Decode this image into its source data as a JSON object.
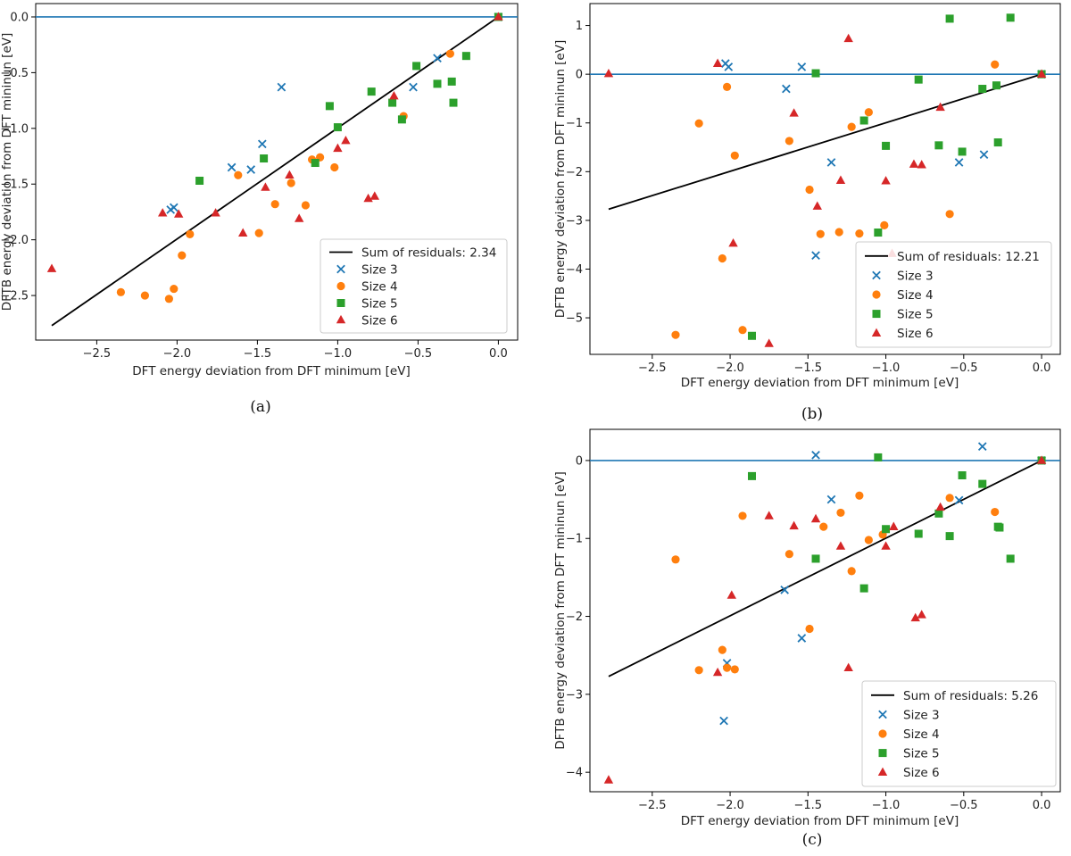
{
  "chart_data": [
    {
      "panel": "a",
      "caption": "(a)",
      "type": "scatter",
      "xlabel": "DFT energy deviation from DFT minimum [eV]",
      "ylabel": "DFTB energy deviation from DFT mininun [eV]",
      "xlim": [
        -2.88,
        0.12
      ],
      "ylim": [
        -2.9,
        0.12
      ],
      "xticks": [
        -2.5,
        -2.0,
        -1.5,
        -1.0,
        -0.5,
        0.0
      ],
      "xtick_labels": [
        "−2.5",
        "−2.0",
        "−1.5",
        "−1.0",
        "−0.5",
        "0.0"
      ],
      "yticks": [
        0.0,
        -0.5,
        -1.0,
        -1.5,
        -2.0,
        -2.5
      ],
      "ytick_labels": [
        "0.0",
        "−0.5",
        "−1.0",
        "−1.5",
        "−2.0",
        "−2.5"
      ],
      "hline": 0.0,
      "fit_line": {
        "label": "Sum of residuals: 2.34",
        "x": [
          -2.78,
          0.0
        ],
        "y": [
          -2.77,
          0.0
        ]
      },
      "legend_position": "lower-right",
      "series": [
        {
          "name": "Size 3",
          "marker": "x",
          "color": "#1f77b4",
          "points": [
            [
              -2.04,
              -1.73
            ],
            [
              -2.02,
              -1.71
            ],
            [
              -1.66,
              -1.35
            ],
            [
              -1.54,
              -1.37
            ],
            [
              -1.47,
              -1.14
            ],
            [
              -1.35,
              -0.63
            ],
            [
              -0.53,
              -0.63
            ],
            [
              -0.38,
              -0.37
            ],
            [
              0.0,
              0.0
            ]
          ]
        },
        {
          "name": "Size 4",
          "marker": "circle",
          "color": "#ff7f0e",
          "points": [
            [
              -2.35,
              -2.47
            ],
            [
              -2.2,
              -2.5
            ],
            [
              -2.05,
              -2.53
            ],
            [
              -2.02,
              -2.44
            ],
            [
              -1.97,
              -2.14
            ],
            [
              -1.92,
              -1.95
            ],
            [
              -1.62,
              -1.42
            ],
            [
              -1.49,
              -1.94
            ],
            [
              -1.39,
              -1.68
            ],
            [
              -1.29,
              -1.49
            ],
            [
              -1.2,
              -1.69
            ],
            [
              -1.16,
              -1.28
            ],
            [
              -1.11,
              -1.26
            ],
            [
              -1.02,
              -1.35
            ],
            [
              -0.59,
              -0.89
            ],
            [
              -0.3,
              -0.33
            ]
          ]
        },
        {
          "name": "Size 5",
          "marker": "square",
          "color": "#2ca02c",
          "points": [
            [
              -1.86,
              -1.47
            ],
            [
              -1.46,
              -1.27
            ],
            [
              -1.14,
              -1.31
            ],
            [
              -1.05,
              -0.8
            ],
            [
              -1.0,
              -0.99
            ],
            [
              -0.79,
              -0.67
            ],
            [
              -0.66,
              -0.77
            ],
            [
              -0.6,
              -0.92
            ],
            [
              -0.51,
              -0.44
            ],
            [
              -0.38,
              -0.6
            ],
            [
              -0.29,
              -0.58
            ],
            [
              -0.28,
              -0.77
            ],
            [
              -0.2,
              -0.35
            ],
            [
              0.0,
              0.0
            ]
          ]
        },
        {
          "name": "Size 6",
          "marker": "triangle",
          "color": "#d62728",
          "points": [
            [
              -2.78,
              -2.26
            ],
            [
              -2.09,
              -1.76
            ],
            [
              -1.99,
              -1.77
            ],
            [
              -1.76,
              -1.76
            ],
            [
              -1.59,
              -1.94
            ],
            [
              -1.45,
              -1.53
            ],
            [
              -1.3,
              -1.42
            ],
            [
              -1.24,
              -1.81
            ],
            [
              -1.0,
              -1.18
            ],
            [
              -0.95,
              -1.11
            ],
            [
              -0.81,
              -1.63
            ],
            [
              -0.77,
              -1.61
            ],
            [
              -0.65,
              -0.71
            ],
            [
              0.0,
              0.0
            ]
          ]
        }
      ]
    },
    {
      "panel": "b",
      "caption": "(b)",
      "type": "scatter",
      "xlabel": "DFT energy deviation from DFT minimum [eV]",
      "ylabel": "DFTB energy deviation from DFT mininun [eV]",
      "xlim": [
        -2.9,
        0.12
      ],
      "ylim": [
        -5.75,
        1.45
      ],
      "xticks": [
        -2.5,
        -2.0,
        -1.5,
        -1.0,
        -0.5,
        0.0
      ],
      "xtick_labels": [
        "−2.5",
        "−2.0",
        "−1.5",
        "−1.0",
        "−0.5",
        "0.0"
      ],
      "yticks": [
        1,
        0,
        -1,
        -2,
        -3,
        -4,
        -5
      ],
      "ytick_labels": [
        "1",
        "0",
        "−1",
        "−2",
        "−3",
        "−4",
        "−5"
      ],
      "hline": 0.0,
      "fit_line": {
        "label": "Sum of residuals: 12.21",
        "x": [
          -2.78,
          0.0
        ],
        "y": [
          -2.77,
          0.0
        ]
      },
      "legend_position": "lower-right",
      "series": [
        {
          "name": "Size 3",
          "marker": "x",
          "color": "#1f77b4",
          "points": [
            [
              -2.03,
              0.22
            ],
            [
              -2.01,
              0.15
            ],
            [
              -1.64,
              -0.3
            ],
            [
              -1.54,
              0.15
            ],
            [
              -1.45,
              -3.72
            ],
            [
              -1.35,
              -1.81
            ],
            [
              -0.53,
              -1.81
            ],
            [
              -0.37,
              -1.65
            ],
            [
              0.0,
              0.0
            ]
          ]
        },
        {
          "name": "Size 4",
          "marker": "circle",
          "color": "#ff7f0e",
          "points": [
            [
              -2.35,
              -5.35
            ],
            [
              -2.2,
              -1.01
            ],
            [
              -2.05,
              -3.78
            ],
            [
              -2.02,
              -0.26
            ],
            [
              -1.97,
              -1.67
            ],
            [
              -1.92,
              -5.25
            ],
            [
              -1.62,
              -1.37
            ],
            [
              -1.49,
              -2.37
            ],
            [
              -1.42,
              -3.28
            ],
            [
              -1.3,
              -3.24
            ],
            [
              -1.22,
              -1.08
            ],
            [
              -1.17,
              -3.27
            ],
            [
              -1.11,
              -0.78
            ],
            [
              -1.01,
              -3.1
            ],
            [
              -0.59,
              -2.87
            ],
            [
              -0.3,
              0.2
            ]
          ]
        },
        {
          "name": "Size 5",
          "marker": "square",
          "color": "#2ca02c",
          "points": [
            [
              -1.86,
              -5.37
            ],
            [
              -1.45,
              0.02
            ],
            [
              -1.14,
              -0.95
            ],
            [
              -1.05,
              -3.25
            ],
            [
              -1.0,
              -1.47
            ],
            [
              -0.79,
              -0.11
            ],
            [
              -0.66,
              -1.46
            ],
            [
              -0.59,
              1.14
            ],
            [
              -0.51,
              -1.59
            ],
            [
              -0.38,
              -0.3
            ],
            [
              -0.29,
              -0.23
            ],
            [
              -0.28,
              -1.4
            ],
            [
              -0.2,
              1.16
            ],
            [
              0.0,
              0.0
            ]
          ]
        },
        {
          "name": "Size 6",
          "marker": "triangle",
          "color": "#d62728",
          "points": [
            [
              -2.78,
              0.01
            ],
            [
              -2.08,
              0.22
            ],
            [
              -1.98,
              -3.47
            ],
            [
              -1.75,
              -5.53
            ],
            [
              -1.59,
              -0.8
            ],
            [
              -1.44,
              -2.71
            ],
            [
              -1.29,
              -2.18
            ],
            [
              -1.24,
              0.73
            ],
            [
              -1.0,
              -2.19
            ],
            [
              -0.96,
              -3.68
            ],
            [
              -0.82,
              -1.85
            ],
            [
              -0.77,
              -1.86
            ],
            [
              -0.65,
              -0.68
            ],
            [
              0.0,
              0.0
            ]
          ]
        }
      ]
    },
    {
      "panel": "c",
      "caption": "(c)",
      "type": "scatter",
      "xlabel": "DFT energy deviation from DFT minimum [eV]",
      "ylabel": "DFTB energy deviation from DFT mininun [eV]",
      "xlim": [
        -2.9,
        0.12
      ],
      "ylim": [
        -4.25,
        0.4
      ],
      "xticks": [
        -2.5,
        -2.0,
        -1.5,
        -1.0,
        -0.5,
        0.0
      ],
      "xtick_labels": [
        "−2.5",
        "−2.0",
        "−1.5",
        "−1.0",
        "−0.5",
        "0.0"
      ],
      "yticks": [
        0,
        -1,
        -2,
        -3,
        -4
      ],
      "ytick_labels": [
        "0",
        "−1",
        "−2",
        "−3",
        "−4"
      ],
      "hline": 0.0,
      "fit_line": {
        "label": "Sum of residuals: 5.26",
        "x": [
          -2.78,
          0.0
        ],
        "y": [
          -2.77,
          0.0
        ]
      },
      "legend_position": "lower-right",
      "series": [
        {
          "name": "Size 3",
          "marker": "x",
          "color": "#1f77b4",
          "points": [
            [
              -2.04,
              -3.34
            ],
            [
              -2.02,
              -2.6
            ],
            [
              -1.65,
              -1.66
            ],
            [
              -1.54,
              -2.28
            ],
            [
              -1.45,
              0.07
            ],
            [
              -1.35,
              -0.5
            ],
            [
              -0.53,
              -0.51
            ],
            [
              -0.38,
              0.18
            ],
            [
              0.0,
              0.0
            ]
          ]
        },
        {
          "name": "Size 4",
          "marker": "circle",
          "color": "#ff7f0e",
          "points": [
            [
              -2.35,
              -1.27
            ],
            [
              -2.2,
              -2.69
            ],
            [
              -2.05,
              -2.43
            ],
            [
              -2.02,
              -2.66
            ],
            [
              -1.97,
              -2.68
            ],
            [
              -1.92,
              -0.71
            ],
            [
              -1.62,
              -1.2
            ],
            [
              -1.49,
              -2.16
            ],
            [
              -1.4,
              -0.85
            ],
            [
              -1.29,
              -0.67
            ],
            [
              -1.22,
              -1.42
            ],
            [
              -1.17,
              -0.45
            ],
            [
              -1.11,
              -1.02
            ],
            [
              -1.02,
              -0.95
            ],
            [
              -0.59,
              -0.48
            ],
            [
              -0.3,
              -0.66
            ]
          ]
        },
        {
          "name": "Size 5",
          "marker": "square",
          "color": "#2ca02c",
          "points": [
            [
              -1.86,
              -0.2
            ],
            [
              -1.45,
              -1.26
            ],
            [
              -1.14,
              -1.64
            ],
            [
              -1.05,
              0.04
            ],
            [
              -1.0,
              -0.88
            ],
            [
              -0.79,
              -0.94
            ],
            [
              -0.66,
              -0.68
            ],
            [
              -0.59,
              -0.97
            ],
            [
              -0.51,
              -0.19
            ],
            [
              -0.38,
              -0.3
            ],
            [
              -0.28,
              -0.85
            ],
            [
              -0.27,
              -0.86
            ],
            [
              -0.2,
              -1.26
            ],
            [
              0.0,
              0.0
            ]
          ]
        },
        {
          "name": "Size 6",
          "marker": "triangle",
          "color": "#d62728",
          "points": [
            [
              -2.78,
              -4.1
            ],
            [
              -2.08,
              -2.72
            ],
            [
              -1.99,
              -1.73
            ],
            [
              -1.75,
              -0.71
            ],
            [
              -1.59,
              -0.84
            ],
            [
              -1.45,
              -0.75
            ],
            [
              -1.29,
              -1.1
            ],
            [
              -1.24,
              -2.66
            ],
            [
              -1.0,
              -1.1
            ],
            [
              -0.95,
              -0.85
            ],
            [
              -0.81,
              -2.02
            ],
            [
              -0.77,
              -1.98
            ],
            [
              -0.65,
              -0.6
            ],
            [
              0.0,
              0.0
            ]
          ]
        }
      ]
    }
  ]
}
